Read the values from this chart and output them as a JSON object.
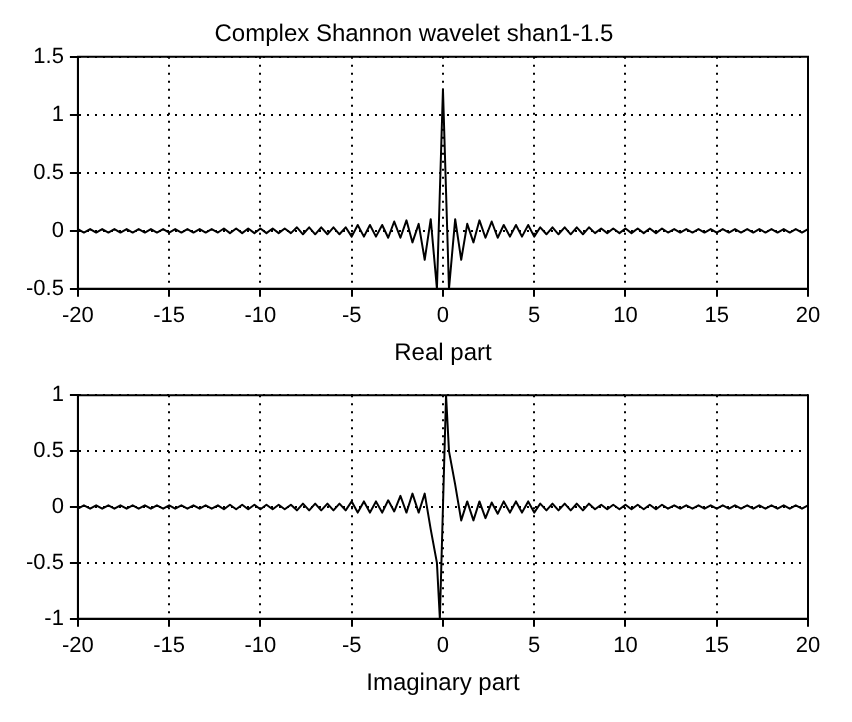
{
  "chart_data": [
    {
      "type": "line",
      "title": "Complex Shannon wavelet shan1-1.5",
      "xlabel": "Real part",
      "color": "#000000",
      "grid": true,
      "xlim": [
        -20,
        20
      ],
      "ylim": [
        -0.5,
        1.5
      ],
      "xticks": [
        -20,
        -15,
        -10,
        -5,
        0,
        5,
        10,
        15,
        20
      ],
      "yticks": [
        -0.5,
        0,
        0.5,
        1,
        1.5
      ],
      "x": [
        -20,
        -19.67,
        -19.33,
        -19,
        -18.67,
        -18.33,
        -18,
        -17.67,
        -17.33,
        -17,
        -16.67,
        -16.33,
        -16,
        -15.67,
        -15.33,
        -15,
        -14.67,
        -14.33,
        -14,
        -13.67,
        -13.33,
        -13,
        -12.67,
        -12.33,
        -12,
        -11.67,
        -11.33,
        -11,
        -10.67,
        -10.33,
        -10,
        -9.67,
        -9.33,
        -9,
        -8.67,
        -8.33,
        -8,
        -7.67,
        -7.33,
        -7,
        -6.67,
        -6.33,
        -6,
        -5.67,
        -5.33,
        -5,
        -4.67,
        -4.33,
        -4,
        -3.67,
        -3.33,
        -3,
        -2.67,
        -2.33,
        -2,
        -1.67,
        -1.33,
        -1,
        -0.67,
        -0.33,
        0,
        0.33,
        0.67,
        1,
        1.33,
        1.67,
        2,
        2.33,
        2.67,
        3,
        3.33,
        3.67,
        4,
        4.33,
        4.67,
        5,
        5.33,
        5.67,
        6,
        6.33,
        6.67,
        7,
        7.33,
        7.67,
        8,
        8.33,
        8.67,
        9,
        9.33,
        9.67,
        10,
        10.33,
        10.67,
        11,
        11.33,
        11.67,
        12,
        12.33,
        12.67,
        13,
        13.33,
        13.67,
        14,
        14.33,
        14.67,
        15,
        15.33,
        15.67,
        16,
        16.33,
        16.67,
        17,
        17.33,
        17.67,
        18,
        18.33,
        18.67,
        19,
        19.33,
        19.67,
        20
      ],
      "values": [
        0.015,
        -0.015,
        0.015,
        -0.015,
        0.015,
        -0.015,
        0.015,
        -0.015,
        0.015,
        -0.015,
        0.015,
        -0.015,
        0.015,
        -0.015,
        0.015,
        -0.015,
        0.015,
        -0.015,
        0.015,
        -0.015,
        0.015,
        -0.015,
        0.015,
        -0.015,
        0.02,
        -0.02,
        0.02,
        -0.02,
        0.02,
        -0.02,
        0.02,
        -0.02,
        0.02,
        -0.02,
        0.02,
        -0.02,
        0.03,
        -0.03,
        0.03,
        -0.03,
        0.03,
        -0.03,
        0.03,
        -0.03,
        0.03,
        -0.05,
        0.05,
        -0.05,
        0.05,
        -0.05,
        0.05,
        -0.06,
        0.08,
        -0.06,
        0.09,
        -0.1,
        0.06,
        -0.25,
        0.1,
        -0.5,
        1.22,
        -0.5,
        0.1,
        -0.25,
        0.06,
        -0.1,
        0.09,
        -0.06,
        0.08,
        -0.06,
        0.05,
        -0.05,
        0.05,
        -0.05,
        0.05,
        -0.05,
        0.03,
        -0.03,
        0.03,
        -0.03,
        0.03,
        -0.03,
        0.03,
        -0.03,
        0.03,
        -0.02,
        0.02,
        -0.02,
        0.02,
        -0.02,
        0.02,
        -0.02,
        0.02,
        -0.02,
        0.02,
        -0.02,
        0.02,
        -0.015,
        0.015,
        -0.015,
        0.015,
        -0.015,
        0.015,
        -0.015,
        0.015,
        -0.015,
        0.015,
        -0.015,
        0.015,
        -0.015,
        0.015,
        -0.015,
        0.015,
        -0.015,
        0.015,
        -0.015,
        0.015,
        -0.015,
        0.015,
        -0.015,
        0.015
      ]
    },
    {
      "type": "line",
      "xlabel": "Imaginary part",
      "color": "#000000",
      "grid": true,
      "xlim": [
        -20,
        20
      ],
      "ylim": [
        -1,
        1
      ],
      "xticks": [
        -20,
        -15,
        -10,
        -5,
        0,
        5,
        10,
        15,
        20
      ],
      "yticks": [
        -1,
        -0.5,
        0,
        0.5,
        1
      ],
      "x": [
        -20,
        -19.67,
        -19.33,
        -19,
        -18.67,
        -18.33,
        -18,
        -17.67,
        -17.33,
        -17,
        -16.67,
        -16.33,
        -16,
        -15.67,
        -15.33,
        -15,
        -14.67,
        -14.33,
        -14,
        -13.67,
        -13.33,
        -13,
        -12.67,
        -12.33,
        -12,
        -11.67,
        -11.33,
        -11,
        -10.67,
        -10.33,
        -10,
        -9.67,
        -9.33,
        -9,
        -8.67,
        -8.33,
        -8,
        -7.67,
        -7.33,
        -7,
        -6.67,
        -6.33,
        -6,
        -5.67,
        -5.33,
        -5,
        -4.67,
        -4.33,
        -4,
        -3.67,
        -3.33,
        -3,
        -2.67,
        -2.33,
        -2,
        -1.67,
        -1.33,
        -1,
        -0.67,
        -0.33,
        -0.17,
        0,
        0.17,
        0.33,
        0.67,
        1,
        1.33,
        1.67,
        2,
        2.33,
        2.67,
        3,
        3.33,
        3.67,
        4,
        4.33,
        4.67,
        5,
        5.33,
        5.67,
        6,
        6.33,
        6.67,
        7,
        7.33,
        7.67,
        8,
        8.33,
        8.67,
        9,
        9.33,
        9.67,
        10,
        10.33,
        10.67,
        11,
        11.33,
        11.67,
        12,
        12.33,
        12.67,
        13,
        13.33,
        13.67,
        14,
        14.33,
        14.67,
        15,
        15.33,
        15.67,
        16,
        16.33,
        16.67,
        17,
        17.33,
        17.67,
        18,
        18.33,
        18.67,
        19,
        19.33,
        19.67,
        20
      ],
      "values": [
        -0.015,
        0.015,
        -0.015,
        0.015,
        -0.015,
        0.015,
        -0.015,
        0.015,
        -0.015,
        0.015,
        -0.015,
        0.015,
        -0.015,
        0.015,
        -0.015,
        0.015,
        -0.015,
        0.015,
        -0.015,
        0.015,
        -0.015,
        0.015,
        -0.015,
        0.015,
        -0.02,
        0.02,
        -0.02,
        0.02,
        -0.02,
        0.02,
        -0.02,
        0.02,
        -0.02,
        0.02,
        -0.02,
        0.02,
        -0.03,
        0.03,
        -0.03,
        0.03,
        -0.03,
        0.03,
        -0.03,
        0.03,
        -0.03,
        0.05,
        -0.05,
        0.05,
        -0.05,
        0.05,
        -0.05,
        0.06,
        -0.04,
        0.1,
        -0.05,
        0.12,
        -0.05,
        0.12,
        -0.2,
        -0.5,
        -1,
        0,
        1,
        0.5,
        0.2,
        -0.12,
        0.05,
        -0.12,
        0.05,
        -0.1,
        0.04,
        -0.06,
        0.05,
        -0.05,
        0.05,
        -0.05,
        0.05,
        -0.05,
        0.03,
        -0.03,
        0.03,
        -0.03,
        0.03,
        -0.03,
        0.03,
        -0.03,
        0.03,
        -0.02,
        0.02,
        -0.02,
        0.02,
        -0.02,
        0.02,
        -0.02,
        0.02,
        -0.02,
        0.02,
        -0.02,
        0.02,
        -0.015,
        0.015,
        -0.015,
        0.015,
        -0.015,
        0.015,
        -0.015,
        0.015,
        -0.015,
        0.015,
        -0.015,
        0.015,
        -0.015,
        0.015,
        -0.015,
        0.015,
        -0.015,
        0.015,
        -0.015,
        0.015,
        -0.015,
        0.015,
        -0.015,
        0.015
      ]
    }
  ]
}
